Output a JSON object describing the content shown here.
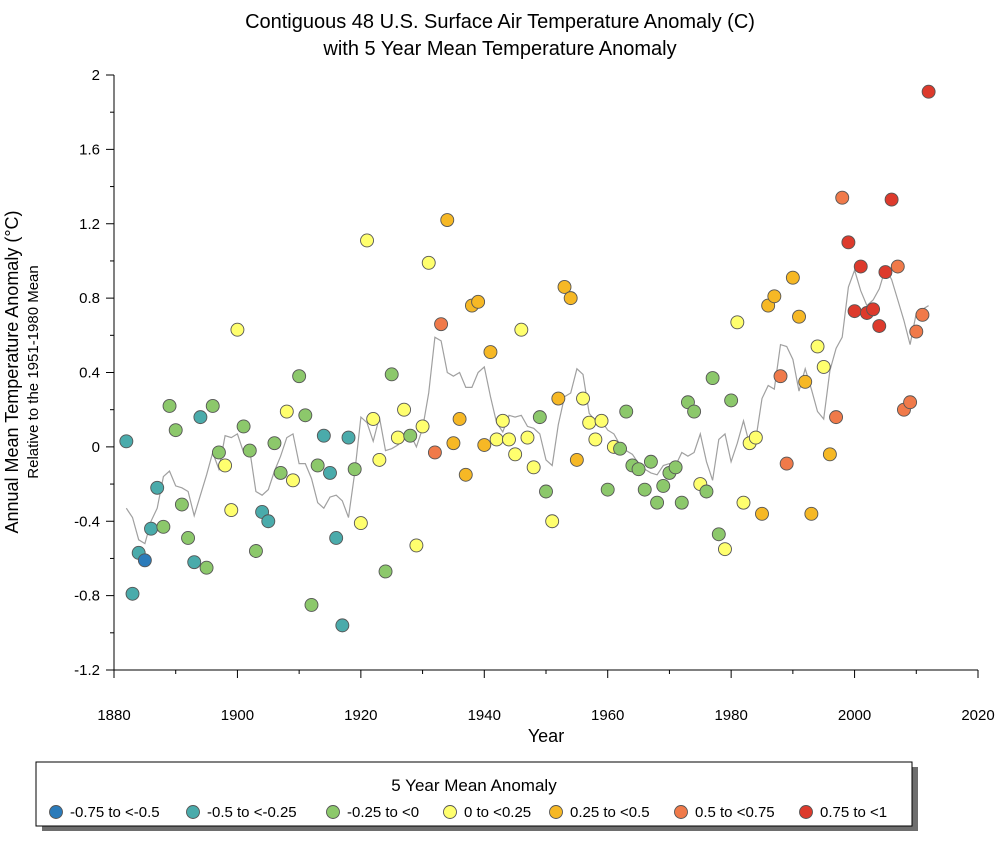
{
  "chart_data": {
    "type": "scatter",
    "title": "Contiguous 48 U.S. Surface Air Temperature Anomaly (C)",
    "subtitle": "with 5 Year Mean Temperature Anomaly",
    "xlabel": "Year",
    "ylabel": "Annual Mean Temperature Anomaly (°C)",
    "ylabel_sub": "Relative to the 1951-1980 Mean",
    "xlim": [
      1880,
      2020
    ],
    "ylim": [
      -1.2,
      2
    ],
    "x_ticks": [
      "1880",
      "1900",
      "1920",
      "1940",
      "1960",
      "1980",
      "2000",
      "2020"
    ],
    "y_ticks": [
      "-1.2",
      "-0.8",
      "-0.4",
      "0",
      "0.4",
      "0.8",
      "1.2",
      "1.6",
      "2"
    ],
    "grid": false,
    "legend": {
      "title": "5 Year Mean Anomaly",
      "placement": "bottom",
      "items": [
        {
          "label": "-0.75 to <-0.5",
          "color": "#2b7bba"
        },
        {
          "label": "-0.5 to <-0.25",
          "color": "#4aabab"
        },
        {
          "label": "-0.25 to <0",
          "color": "#8cc86b"
        },
        {
          "label": "0 to <0.25",
          "color": "#ffff6e"
        },
        {
          "label": "0.25 to <0.5",
          "color": "#f6b825"
        },
        {
          "label": "0.5 to <0.75",
          "color": "#f07a4a"
        },
        {
          "label": "0.75 to <1",
          "color": "#dd3a2c"
        }
      ]
    },
    "series": [
      {
        "type": "scatter",
        "points": [
          {
            "x": 1882,
            "y": 0.03,
            "c": 1
          },
          {
            "x": 1883,
            "y": -0.79,
            "c": 1
          },
          {
            "x": 1884,
            "y": -0.57,
            "c": 1
          },
          {
            "x": 1885,
            "y": -0.61,
            "c": 0
          },
          {
            "x": 1886,
            "y": -0.44,
            "c": 1
          },
          {
            "x": 1887,
            "y": -0.22,
            "c": 1
          },
          {
            "x": 1888,
            "y": -0.43,
            "c": 2
          },
          {
            "x": 1889,
            "y": 0.22,
            "c": 2
          },
          {
            "x": 1890,
            "y": 0.09,
            "c": 2
          },
          {
            "x": 1891,
            "y": -0.31,
            "c": 2
          },
          {
            "x": 1892,
            "y": -0.49,
            "c": 2
          },
          {
            "x": 1893,
            "y": -0.62,
            "c": 1
          },
          {
            "x": 1894,
            "y": 0.16,
            "c": 1
          },
          {
            "x": 1895,
            "y": -0.65,
            "c": 2
          },
          {
            "x": 1896,
            "y": 0.22,
            "c": 2
          },
          {
            "x": 1897,
            "y": -0.03,
            "c": 2
          },
          {
            "x": 1898,
            "y": -0.1,
            "c": 3
          },
          {
            "x": 1899,
            "y": -0.34,
            "c": 3
          },
          {
            "x": 1900,
            "y": 0.63,
            "c": 3
          },
          {
            "x": 1901,
            "y": 0.11,
            "c": 2
          },
          {
            "x": 1902,
            "y": -0.02,
            "c": 2
          },
          {
            "x": 1903,
            "y": -0.56,
            "c": 2
          },
          {
            "x": 1904,
            "y": -0.35,
            "c": 1
          },
          {
            "x": 1905,
            "y": -0.4,
            "c": 1
          },
          {
            "x": 1906,
            "y": 0.02,
            "c": 2
          },
          {
            "x": 1907,
            "y": -0.14,
            "c": 2
          },
          {
            "x": 1908,
            "y": 0.19,
            "c": 3
          },
          {
            "x": 1909,
            "y": -0.18,
            "c": 3
          },
          {
            "x": 1910,
            "y": 0.38,
            "c": 2
          },
          {
            "x": 1911,
            "y": 0.17,
            "c": 2
          },
          {
            "x": 1912,
            "y": -0.85,
            "c": 2
          },
          {
            "x": 1913,
            "y": -0.1,
            "c": 2
          },
          {
            "x": 1914,
            "y": 0.06,
            "c": 1
          },
          {
            "x": 1915,
            "y": -0.14,
            "c": 1
          },
          {
            "x": 1916,
            "y": -0.49,
            "c": 1
          },
          {
            "x": 1917,
            "y": -0.96,
            "c": 1
          },
          {
            "x": 1918,
            "y": 0.05,
            "c": 1
          },
          {
            "x": 1919,
            "y": -0.12,
            "c": 2
          },
          {
            "x": 1920,
            "y": -0.41,
            "c": 3
          },
          {
            "x": 1921,
            "y": 1.11,
            "c": 3
          },
          {
            "x": 1922,
            "y": 0.15,
            "c": 3
          },
          {
            "x": 1923,
            "y": -0.07,
            "c": 3
          },
          {
            "x": 1924,
            "y": -0.67,
            "c": 2
          },
          {
            "x": 1925,
            "y": 0.39,
            "c": 2
          },
          {
            "x": 1926,
            "y": 0.05,
            "c": 3
          },
          {
            "x": 1927,
            "y": 0.2,
            "c": 3
          },
          {
            "x": 1928,
            "y": 0.06,
            "c": 2
          },
          {
            "x": 1929,
            "y": -0.53,
            "c": 3
          },
          {
            "x": 1930,
            "y": 0.11,
            "c": 3
          },
          {
            "x": 1931,
            "y": 0.99,
            "c": 3
          },
          {
            "x": 1932,
            "y": -0.03,
            "c": 5
          },
          {
            "x": 1933,
            "y": 0.66,
            "c": 5
          },
          {
            "x": 1934,
            "y": 1.22,
            "c": 4
          },
          {
            "x": 1935,
            "y": 0.02,
            "c": 4
          },
          {
            "x": 1936,
            "y": 0.15,
            "c": 4
          },
          {
            "x": 1937,
            "y": -0.15,
            "c": 4
          },
          {
            "x": 1938,
            "y": 0.76,
            "c": 4
          },
          {
            "x": 1939,
            "y": 0.78,
            "c": 4
          },
          {
            "x": 1940,
            "y": 0.01,
            "c": 4
          },
          {
            "x": 1941,
            "y": 0.51,
            "c": 4
          },
          {
            "x": 1942,
            "y": 0.04,
            "c": 3
          },
          {
            "x": 1943,
            "y": 0.14,
            "c": 3
          },
          {
            "x": 1944,
            "y": 0.04,
            "c": 3
          },
          {
            "x": 1945,
            "y": -0.04,
            "c": 3
          },
          {
            "x": 1946,
            "y": 0.63,
            "c": 3
          },
          {
            "x": 1947,
            "y": 0.05,
            "c": 3
          },
          {
            "x": 1948,
            "y": -0.11,
            "c": 3
          },
          {
            "x": 1949,
            "y": 0.16,
            "c": 2
          },
          {
            "x": 1950,
            "y": -0.24,
            "c": 2
          },
          {
            "x": 1951,
            "y": -0.4,
            "c": 3
          },
          {
            "x": 1952,
            "y": 0.26,
            "c": 4
          },
          {
            "x": 1953,
            "y": 0.86,
            "c": 4
          },
          {
            "x": 1954,
            "y": 0.8,
            "c": 4
          },
          {
            "x": 1955,
            "y": -0.07,
            "c": 4
          },
          {
            "x": 1956,
            "y": 0.26,
            "c": 3
          },
          {
            "x": 1957,
            "y": 0.13,
            "c": 3
          },
          {
            "x": 1958,
            "y": 0.04,
            "c": 3
          },
          {
            "x": 1959,
            "y": 0.14,
            "c": 3
          },
          {
            "x": 1960,
            "y": -0.23,
            "c": 2
          },
          {
            "x": 1961,
            "y": 0.0,
            "c": 3
          },
          {
            "x": 1962,
            "y": -0.01,
            "c": 2
          },
          {
            "x": 1963,
            "y": 0.19,
            "c": 2
          },
          {
            "x": 1964,
            "y": -0.1,
            "c": 2
          },
          {
            "x": 1965,
            "y": -0.12,
            "c": 2
          },
          {
            "x": 1966,
            "y": -0.23,
            "c": 2
          },
          {
            "x": 1967,
            "y": -0.08,
            "c": 2
          },
          {
            "x": 1968,
            "y": -0.3,
            "c": 2
          },
          {
            "x": 1969,
            "y": -0.21,
            "c": 2
          },
          {
            "x": 1970,
            "y": -0.14,
            "c": 2
          },
          {
            "x": 1971,
            "y": -0.11,
            "c": 2
          },
          {
            "x": 1972,
            "y": -0.3,
            "c": 2
          },
          {
            "x": 1973,
            "y": 0.24,
            "c": 2
          },
          {
            "x": 1974,
            "y": 0.19,
            "c": 2
          },
          {
            "x": 1975,
            "y": -0.2,
            "c": 3
          },
          {
            "x": 1976,
            "y": -0.24,
            "c": 2
          },
          {
            "x": 1977,
            "y": 0.37,
            "c": 2
          },
          {
            "x": 1978,
            "y": -0.47,
            "c": 2
          },
          {
            "x": 1979,
            "y": -0.55,
            "c": 3
          },
          {
            "x": 1980,
            "y": 0.25,
            "c": 2
          },
          {
            "x": 1981,
            "y": 0.67,
            "c": 3
          },
          {
            "x": 1982,
            "y": -0.3,
            "c": 3
          },
          {
            "x": 1983,
            "y": 0.02,
            "c": 3
          },
          {
            "x": 1984,
            "y": 0.05,
            "c": 3
          },
          {
            "x": 1985,
            "y": -0.36,
            "c": 4
          },
          {
            "x": 1986,
            "y": 0.76,
            "c": 4
          },
          {
            "x": 1987,
            "y": 0.81,
            "c": 4
          },
          {
            "x": 1988,
            "y": 0.38,
            "c": 5
          },
          {
            "x": 1989,
            "y": -0.09,
            "c": 5
          },
          {
            "x": 1990,
            "y": 0.91,
            "c": 4
          },
          {
            "x": 1991,
            "y": 0.7,
            "c": 4
          },
          {
            "x": 1992,
            "y": 0.35,
            "c": 4
          },
          {
            "x": 1993,
            "y": -0.36,
            "c": 4
          },
          {
            "x": 1994,
            "y": 0.54,
            "c": 3
          },
          {
            "x": 1995,
            "y": 0.43,
            "c": 3
          },
          {
            "x": 1996,
            "y": -0.04,
            "c": 4
          },
          {
            "x": 1997,
            "y": 0.16,
            "c": 5
          },
          {
            "x": 1998,
            "y": 1.34,
            "c": 5
          },
          {
            "x": 1999,
            "y": 1.1,
            "c": 6
          },
          {
            "x": 2000,
            "y": 0.73,
            "c": 6
          },
          {
            "x": 2001,
            "y": 0.97,
            "c": 6
          },
          {
            "x": 2002,
            "y": 0.72,
            "c": 6
          },
          {
            "x": 2003,
            "y": 0.74,
            "c": 6
          },
          {
            "x": 2004,
            "y": 0.65,
            "c": 6
          },
          {
            "x": 2005,
            "y": 0.94,
            "c": 6
          },
          {
            "x": 2006,
            "y": 1.33,
            "c": 6
          },
          {
            "x": 2007,
            "y": 0.97,
            "c": 5
          },
          {
            "x": 2008,
            "y": 0.2,
            "c": 5
          },
          {
            "x": 2009,
            "y": 0.24,
            "c": 5
          },
          {
            "x": 2010,
            "y": 0.62,
            "c": 5
          },
          {
            "x": 2011,
            "y": 0.71,
            "c": 5
          },
          {
            "x": 2012,
            "y": 1.91,
            "c": 6
          }
        ]
      },
      {
        "type": "line",
        "color": "#a0a0a0",
        "x": [
          1882,
          1883,
          1884,
          1885,
          1886,
          1887,
          1888,
          1889,
          1890,
          1891,
          1892,
          1893,
          1894,
          1895,
          1896,
          1897,
          1898,
          1899,
          1900,
          1901,
          1902,
          1903,
          1904,
          1905,
          1906,
          1907,
          1908,
          1909,
          1910,
          1911,
          1912,
          1913,
          1914,
          1915,
          1916,
          1917,
          1918,
          1919,
          1920,
          1921,
          1922,
          1923,
          1924,
          1925,
          1926,
          1927,
          1928,
          1929,
          1930,
          1931,
          1932,
          1933,
          1934,
          1935,
          1936,
          1937,
          1938,
          1939,
          1940,
          1941,
          1942,
          1943,
          1944,
          1945,
          1946,
          1947,
          1948,
          1949,
          1950,
          1951,
          1952,
          1953,
          1954,
          1955,
          1956,
          1957,
          1958,
          1959,
          1960,
          1961,
          1962,
          1963,
          1964,
          1965,
          1966,
          1967,
          1968,
          1969,
          1970,
          1971,
          1972,
          1973,
          1974,
          1975,
          1976,
          1977,
          1978,
          1979,
          1980,
          1981,
          1982,
          1983,
          1984,
          1985,
          1986,
          1987,
          1988,
          1989,
          1990,
          1991,
          1992,
          1993,
          1994,
          1995,
          1996,
          1997,
          1998,
          1999,
          2000,
          2001,
          2002,
          2003,
          2004,
          2005,
          2006,
          2007,
          2008,
          2009,
          2010,
          2011,
          2012
        ],
        "y": [
          -0.33,
          -0.38,
          -0.5,
          -0.52,
          -0.4,
          -0.33,
          -0.16,
          -0.13,
          -0.21,
          -0.22,
          -0.24,
          -0.37,
          -0.26,
          -0.15,
          -0.03,
          -0.12,
          0.06,
          0.05,
          0.07,
          -0.03,
          -0.02,
          -0.24,
          -0.26,
          -0.23,
          -0.13,
          -0.05,
          0.05,
          0.07,
          -0.09,
          -0.09,
          -0.17,
          -0.3,
          -0.33,
          -0.27,
          -0.26,
          -0.29,
          -0.38,
          -0.14,
          0.16,
          0.13,
          0.03,
          0.16,
          -0.02,
          -0.01,
          0.01,
          0.05,
          0.07,
          0.0,
          0.1,
          0.29,
          0.59,
          0.57,
          0.4,
          0.38,
          0.4,
          0.32,
          0.32,
          0.4,
          0.43,
          0.27,
          0.13,
          0.08,
          0.17,
          0.16,
          0.17,
          0.11,
          0.1,
          0.07,
          -0.07,
          -0.1,
          0.12,
          0.27,
          0.29,
          0.42,
          0.39,
          0.18,
          0.14,
          0.14,
          0.09,
          0.07,
          0.01,
          -0.02,
          -0.04,
          -0.09,
          -0.12,
          -0.14,
          -0.15,
          -0.1,
          -0.09,
          -0.1,
          -0.03,
          -0.05,
          -0.03,
          0.07,
          -0.08,
          -0.18,
          0.04,
          0.07,
          -0.08,
          0.02,
          0.14,
          0.01,
          0.04,
          0.26,
          0.33,
          0.31,
          0.55,
          0.54,
          0.47,
          0.3,
          0.42,
          0.31,
          0.19,
          0.15,
          0.41,
          0.53,
          0.59,
          0.86,
          0.95,
          0.84,
          0.76,
          0.79,
          0.85,
          0.96,
          0.9,
          0.79,
          0.68,
          0.55,
          0.72,
          0.74,
          0.76
        ]
      }
    ]
  }
}
